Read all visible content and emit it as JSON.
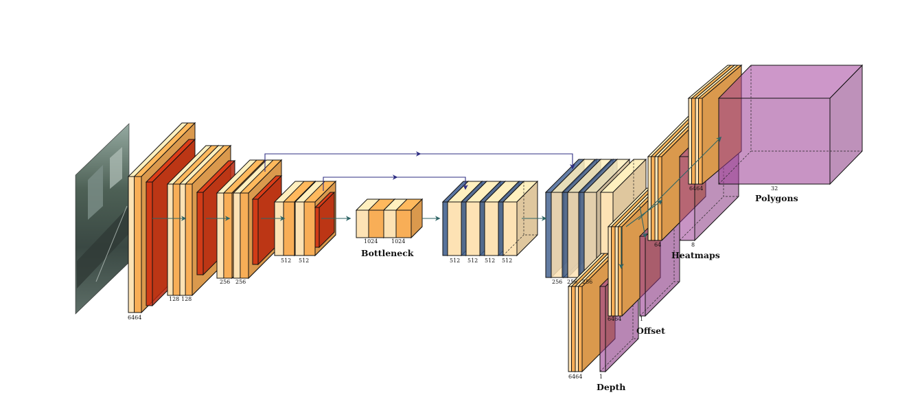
{
  "caption": {
    "bottleneck": "Bottleneck",
    "polygons": "Polygons",
    "heatmaps": "Heatmaps",
    "offset": "Offset",
    "depth": "Depth"
  },
  "labels": {
    "enc1": "6464",
    "enc2a": "128",
    "enc2b": "128",
    "enc3a": "256",
    "enc3b": "256",
    "enc4a": "512",
    "enc4b": "512",
    "bott_a": "1024",
    "bott_b": "1024",
    "dec1a": "512",
    "dec1b": "512",
    "dec1c": "512",
    "dec1d": "512",
    "dec2a": "256",
    "dec2b": "256",
    "dec2c": "256",
    "depth_feat": "6464",
    "depth_out": "1",
    "offset_feat": "6464",
    "offset_out": "1",
    "heat_feat": "64",
    "heat_out": "8",
    "poly_feat": "6464",
    "poly_out": "32"
  },
  "colors": {
    "conv": "#fde2b4",
    "relu": "#f7a547",
    "pool": "#cf2a0e",
    "unpool": "#3b5a8a",
    "head": "#9b3d94",
    "arrow_main": "#2e6566",
    "arrow_skip": "#2c2c82"
  }
}
